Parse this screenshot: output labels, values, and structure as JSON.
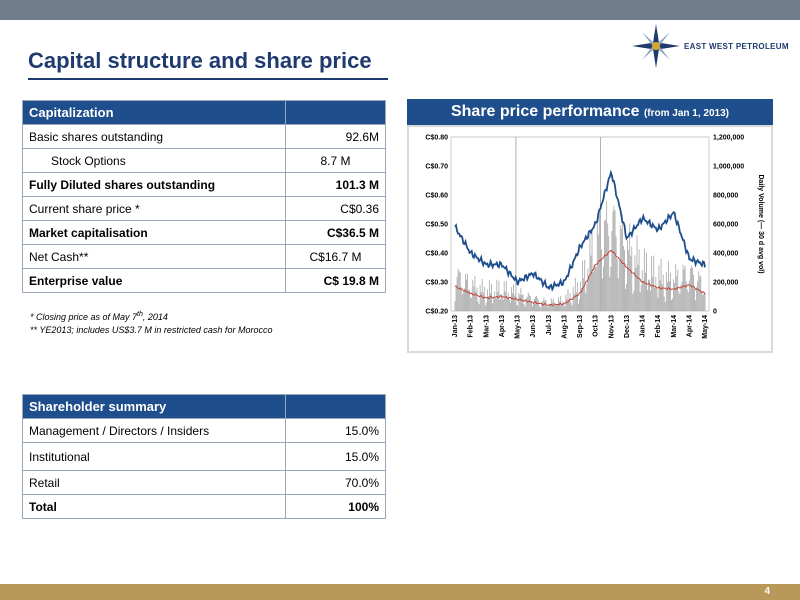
{
  "title": "Capital structure and share price",
  "logo": {
    "text": "EAST WEST PETROLEUM"
  },
  "capitalization": {
    "header": "Capitalization",
    "rows": [
      {
        "label": "Basic shares outstanding",
        "value": "92.6M"
      },
      {
        "label": "Stock Options",
        "value": "8.7 M"
      },
      {
        "label": "Fully Diluted shares outstanding",
        "value": "101.3 M"
      },
      {
        "label": "Current share price *",
        "value": "C$0.36"
      },
      {
        "label": "Market capitalisation",
        "value": "C$36.5 M"
      },
      {
        "label": "Net Cash**",
        "value": "C$16.7 M"
      },
      {
        "label": "Enterprise value",
        "value": "C$ 19.8 M"
      }
    ]
  },
  "footnotes": {
    "note1_prefix": "* Closing price as of May 7",
    "note1_sup": "th",
    "note1_suffix": ", 2014",
    "note2": "** YE2013; includes US$3.7 M in restricted cash for Morocco"
  },
  "shareholders": {
    "header": "Shareholder summary",
    "rows": [
      {
        "label": "Management / Directors / Insiders",
        "value": "15.0%"
      },
      {
        "label": "Institutional",
        "value": "15.0%"
      },
      {
        "label": "Retail",
        "value": "70.0%"
      },
      {
        "label": "Total",
        "value": "100%"
      }
    ]
  },
  "chart_header": {
    "title": "Share price performance",
    "subtitle": "(from Jan 1, 2013)"
  },
  "chart_data": {
    "type": "line",
    "title": "Share price performance (from Jan 1, 2013)",
    "xlabel": "",
    "ylabel": "",
    "y2label": "Daily Volume (— 30 d avg vol)",
    "x": [
      "Jan-13",
      "Feb-13",
      "Mar-13",
      "Apr-13",
      "May-13",
      "Jun-13",
      "Jul-13",
      "Aug-13",
      "Sep-13",
      "Oct-13",
      "Nov-13",
      "Dec-13",
      "Jan-14",
      "Feb-14",
      "Mar-14",
      "Apr-14",
      "May-14"
    ],
    "y_ticks": [
      "C$0.80",
      "C$0.70",
      "C$0.60",
      "C$0.50",
      "C$0.40",
      "C$0.30",
      "C$0.20"
    ],
    "ylim": [
      0.2,
      0.8
    ],
    "y2_ticks": [
      "1,200,000",
      "1,000,000",
      "800,000",
      "600,000",
      "400,000",
      "200,000",
      "0"
    ],
    "y2lim": [
      0,
      1200000
    ],
    "series": [
      {
        "values": [
          0.49,
          0.4,
          0.36,
          0.36,
          0.3,
          0.33,
          0.28,
          0.3,
          0.42,
          0.5,
          0.68,
          0.45,
          0.52,
          0.48,
          0.54,
          0.38,
          0.36
        ],
        "color": "#1f4e8c"
      },
      {
        "values": [
          170000,
          120000,
          90000,
          100000,
          80000,
          60000,
          40000,
          50000,
          120000,
          320000,
          420000,
          300000,
          200000,
          160000,
          150000,
          180000,
          120000
        ],
        "color": "#c0392b"
      }
    ],
    "volume_bar_color": "#a6a6a6",
    "grid": false
  }
}
